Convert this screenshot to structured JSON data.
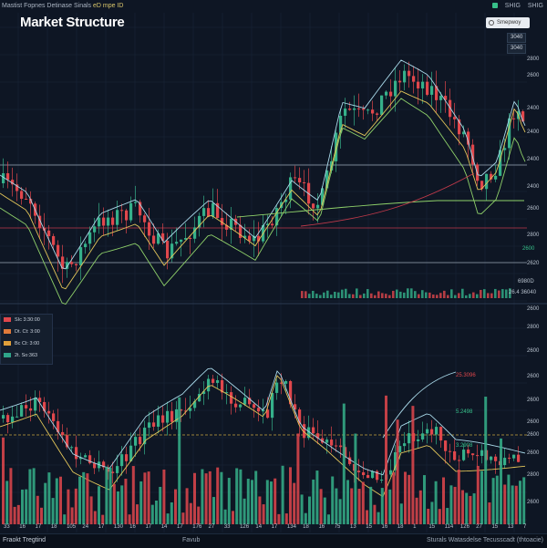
{
  "topbar": {
    "left_text": "Mastist Fopnes Detinase Sinals",
    "left_highlight": "eD mpe ID",
    "right_items": [
      "SHIG",
      "SHIG"
    ]
  },
  "search": {
    "placeholder": "Smepwoy"
  },
  "title": "Market Structure",
  "badges": [
    "3040",
    "3040"
  ],
  "upper_axis": [
    "2800",
    "2600",
    "2400",
    "2400",
    "2400",
    "2400",
    "2600",
    "2800",
    "2620"
  ],
  "upper_axis_misc": {
    "marker": "2600",
    "arrow_label": "2600"
  },
  "volume_labels": [
    "6980D",
    "26.4 36040"
  ],
  "lower_axis": [
    "2600",
    "2800",
    "2600",
    "2600",
    "2600",
    "2600",
    "2600",
    "2600",
    "2800",
    "2600"
  ],
  "legend": [
    {
      "label": "SIc 3:30:00",
      "color": "#e0474c"
    },
    {
      "label": "Dt. Ct: 3:00",
      "color": "#e07a3a"
    },
    {
      "label": "Bc Ct: 3:00",
      "color": "#e0a03a"
    },
    {
      "label": "2t. So:363",
      "color": "#2fa58a"
    }
  ],
  "notes": [
    {
      "text": "25.3096",
      "color": "#e0474c"
    },
    {
      "text": "5.2498",
      "color": "#37c08a"
    },
    {
      "text": "3.2908",
      "color": "#37c08a"
    }
  ],
  "x_labels": [
    "33",
    "16",
    "17",
    "18",
    "105",
    "24",
    "17",
    "130",
    "16",
    "17",
    "14",
    "17",
    "176",
    "27",
    "33",
    "126",
    "14",
    "17",
    "134",
    "18",
    "16",
    "75",
    "13",
    "15",
    "16",
    "18",
    "1",
    "15",
    "114",
    "126",
    "27",
    "15",
    "13",
    "7"
  ],
  "footer": {
    "left": "Fraokt Tregtind",
    "mid": "Favub",
    "right": "Sturals Watasdelse Tecusscadt (thtoacie)"
  },
  "colors": {
    "bg": "#0e1624",
    "up": "#35b08a",
    "down": "#e0474c",
    "ma1": "#a8d8e8",
    "ma2": "#e3c65a",
    "ma3": "#8fd16a"
  }
}
